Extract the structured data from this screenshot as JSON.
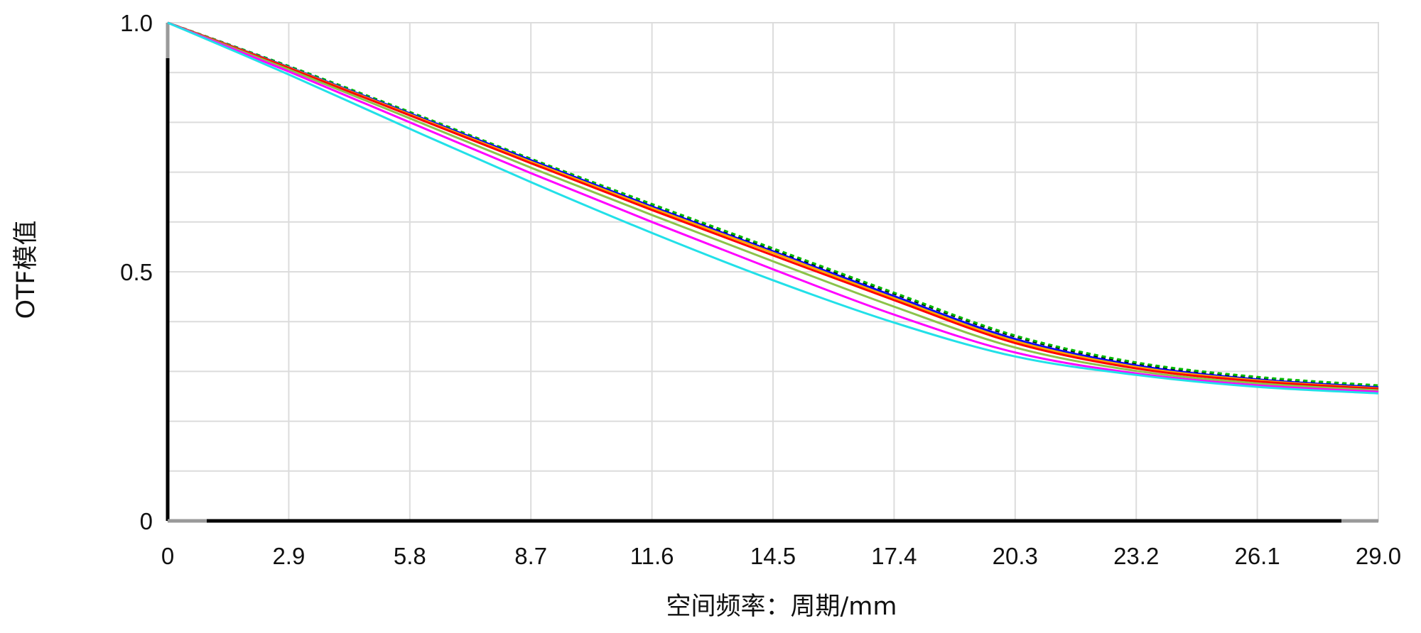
{
  "chart_data": {
    "type": "line",
    "xlabel": "空间频率：周期/mm",
    "ylabel": "OTF模值",
    "xlim": [
      0,
      29.0
    ],
    "ylim": [
      0,
      1.0
    ],
    "x_ticks": [
      "0",
      "2.9",
      "5.8",
      "8.7",
      "11.6",
      "14.5",
      "17.4",
      "20.3",
      "23.2",
      "26.1",
      "29.0"
    ],
    "y_ticks": [
      "0",
      "0.5",
      "1.0"
    ],
    "y_minor_step": 0.1,
    "grid": true,
    "legend": "none",
    "x": [
      0,
      2.9,
      5.8,
      8.7,
      11.6,
      14.5,
      17.4,
      20.3,
      23.2,
      26.1,
      29.0
    ],
    "series": [
      {
        "color": "#000000",
        "dashed": true,
        "values": [
          1.0,
          0.912,
          0.82,
          0.726,
          0.634,
          0.545,
          0.456,
          0.37,
          0.316,
          0.287,
          0.27
        ]
      },
      {
        "color": "#00bb00",
        "dashed": true,
        "values": [
          1.0,
          0.913,
          0.821,
          0.727,
          0.636,
          0.547,
          0.458,
          0.372,
          0.318,
          0.289,
          0.272
        ]
      },
      {
        "color": "#0000ff",
        "dashed": false,
        "values": [
          1.0,
          0.911,
          0.818,
          0.724,
          0.631,
          0.541,
          0.451,
          0.365,
          0.312,
          0.284,
          0.268
        ]
      },
      {
        "color": "#ffa500",
        "dashed": false,
        "values": [
          1.0,
          0.91,
          0.816,
          0.721,
          0.628,
          0.538,
          0.447,
          0.361,
          0.309,
          0.282,
          0.266
        ]
      },
      {
        "color": "#ff0000",
        "dashed": false,
        "values": [
          1.0,
          0.909,
          0.814,
          0.718,
          0.624,
          0.533,
          0.443,
          0.357,
          0.306,
          0.28,
          0.265
        ]
      },
      {
        "color": "#8bc34a",
        "dashed": false,
        "values": [
          1.0,
          0.906,
          0.808,
          0.709,
          0.614,
          0.521,
          0.43,
          0.348,
          0.301,
          0.276,
          0.262
        ]
      },
      {
        "color": "#ff00ff",
        "dashed": false,
        "values": [
          1.0,
          0.902,
          0.8,
          0.698,
          0.6,
          0.505,
          0.414,
          0.338,
          0.296,
          0.272,
          0.259
        ]
      },
      {
        "color": "#22e0e8",
        "dashed": false,
        "values": [
          1.0,
          0.896,
          0.787,
          0.68,
          0.578,
          0.483,
          0.398,
          0.33,
          0.293,
          0.269,
          0.256
        ]
      }
    ]
  }
}
